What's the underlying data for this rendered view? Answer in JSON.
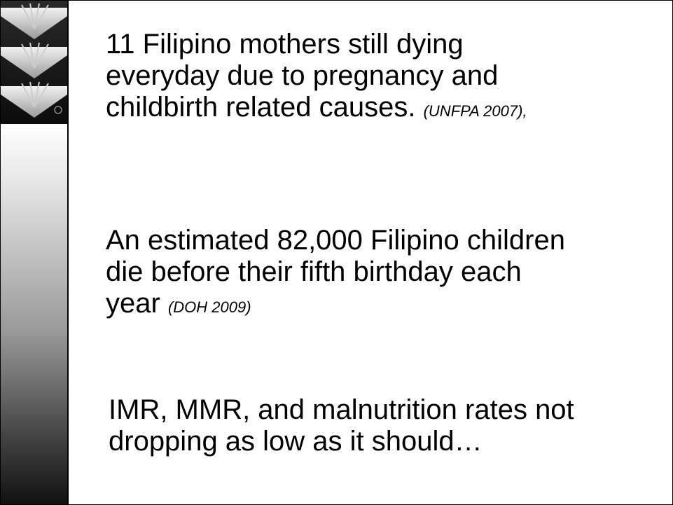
{
  "slide": {
    "paragraphs": [
      {
        "lines": [
          "11 Filipino mothers still dying",
          "everyday due to pregnancy and",
          "childbirth related causes."
        ],
        "citation": "(UNFPA 2007),"
      },
      {
        "lines": [
          "An estimated 82,000 Filipino children",
          "die before their fifth birthday each",
          "year"
        ],
        "citation": "(DOH 2009)"
      },
      {
        "lines": [
          "IMR, MMR, and malnutrition rates not",
          "dropping as low as it should…"
        ]
      }
    ]
  }
}
